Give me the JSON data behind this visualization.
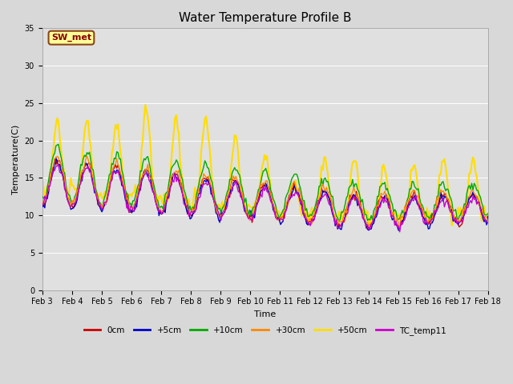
{
  "title": "Water Temperature Profile B",
  "xlabel": "Time",
  "ylabel": "Temperature(C)",
  "ylim": [
    0,
    35
  ],
  "background_color": "#d8d8d8",
  "plot_bg_color": "#e0e0e0",
  "annotation_text": "SW_met",
  "annotation_bg": "#ffff99",
  "annotation_border": "#8b4513",
  "annotation_text_color": "#8b0000",
  "series": {
    "0cm": {
      "color": "#cc0000",
      "lw": 1.0
    },
    "+5cm": {
      "color": "#0000cc",
      "lw": 1.0
    },
    "+10cm": {
      "color": "#00aa00",
      "lw": 1.0
    },
    "+30cm": {
      "color": "#ff8800",
      "lw": 1.0
    },
    "+50cm": {
      "color": "#ffdd00",
      "lw": 1.5
    },
    "TC_temp11": {
      "color": "#cc00cc",
      "lw": 1.0
    }
  },
  "xtick_labels": [
    "Feb 3",
    "Feb 4",
    "Feb 5",
    "Feb 6",
    "Feb 7",
    "Feb 8",
    "Feb 9",
    "Feb 10",
    "Feb 11",
    "Feb 12",
    "Feb 13",
    "Feb 14",
    "Feb 15",
    "Feb 16",
    "Feb 17",
    "Feb 18"
  ],
  "xtick_positions": [
    3,
    4,
    5,
    6,
    7,
    8,
    9,
    10,
    11,
    12,
    13,
    14,
    15,
    16,
    17,
    18
  ],
  "ytick_positions": [
    0,
    5,
    10,
    15,
    20,
    25,
    30,
    35
  ],
  "grid_color": "#ffffff",
  "font_size_title": 11,
  "font_size_axis": 8,
  "font_size_tick": 7,
  "fig_width": 6.4,
  "fig_height": 4.8,
  "dpi": 100
}
